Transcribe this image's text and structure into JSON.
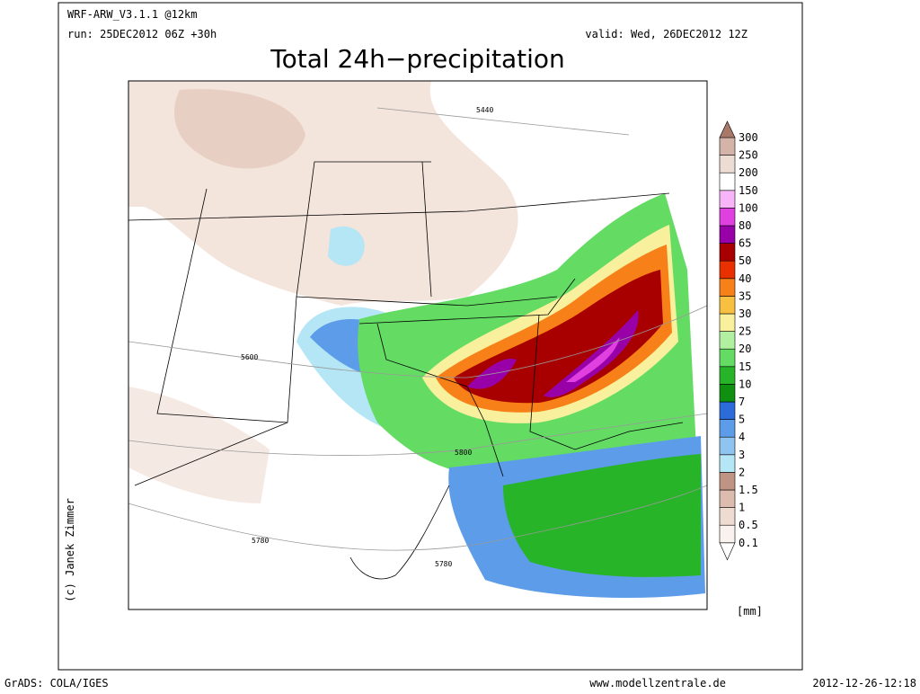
{
  "header": {
    "model": "WRF-ARW_V3.1.1 @12km",
    "run": "run: 25DEC2012 06Z +30h",
    "valid": "valid: Wed, 26DEC2012 12Z"
  },
  "title": "Total 24h−precipitation",
  "credit": "(c) Janek Zimmer",
  "legend": {
    "unit": "[mm]",
    "levels": [
      0.1,
      0.5,
      1,
      1.5,
      2,
      3,
      4,
      5,
      7,
      10,
      15,
      20,
      25,
      30,
      35,
      40,
      50,
      65,
      80,
      100,
      150,
      200,
      250,
      300
    ],
    "colors": [
      "#ffffff",
      "#faf2ee",
      "#eedcd2",
      "#dcbcae",
      "#c09484",
      "#b4e6f6",
      "#90c4f0",
      "#5c9ce8",
      "#2c6cd8",
      "#109010",
      "#28b428",
      "#64dc64",
      "#b0f0a0",
      "#f8f09c",
      "#f8c040",
      "#f88018",
      "#e83000",
      "#a80000",
      "#9800a8",
      "#e040e0",
      "#f8b4f8",
      "#ffffff",
      "#ecdcd4",
      "#d4b4a8",
      "#a87868"
    ]
  },
  "contour_labels": [
    "5440",
    "5600",
    "5800",
    "5780",
    "5780"
  ],
  "footer": {
    "software": "GrADS: COLA/IGES",
    "website": "www.modellzentrale.de",
    "timestamp": "2012-12-26-12:18"
  }
}
